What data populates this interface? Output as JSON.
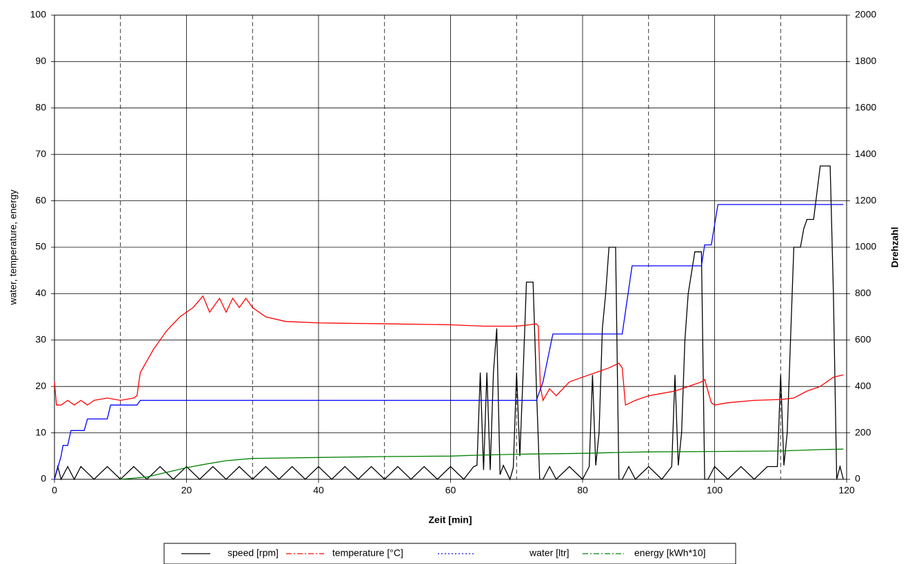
{
  "chart_data": {
    "type": "line",
    "xlabel": "Zeit [min]",
    "ylabel": "water, temperature, energy",
    "y2label": "Drehzahl",
    "xlim": [
      0,
      120
    ],
    "xticks": [
      0,
      20,
      40,
      60,
      80,
      100,
      120
    ],
    "xminorgrid": [
      10,
      30,
      50,
      70,
      90,
      110
    ],
    "ylim": [
      0,
      100
    ],
    "yticks": [
      0,
      10,
      20,
      30,
      40,
      50,
      60,
      70,
      80,
      90,
      100
    ],
    "y2lim": [
      0,
      2000
    ],
    "y2ticks": [
      0,
      200,
      400,
      600,
      800,
      1000,
      1200,
      1400,
      1600,
      1800,
      2000
    ],
    "grid": true,
    "legend": "bottom",
    "series": [
      {
        "name": "speed [rpm]",
        "color": "#000000",
        "style": "solid",
        "axis": "y2",
        "x": [
          0,
          0.5,
          1,
          2,
          3,
          4,
          6,
          8,
          10,
          12,
          14,
          16,
          18,
          20,
          22,
          24,
          26,
          28,
          30,
          32,
          34,
          36,
          38,
          40,
          42,
          44,
          46,
          48,
          50,
          52,
          54,
          56,
          58,
          60,
          62,
          63.5,
          64,
          64.5,
          65,
          65.5,
          66,
          66.5,
          67,
          67.5,
          68,
          69,
          69.5,
          70,
          70.5,
          71,
          71.5,
          72.5,
          73,
          73.5,
          74,
          75,
          76,
          78,
          80,
          81,
          81.5,
          82,
          82.5,
          83,
          83.5,
          84,
          85,
          85.5,
          86,
          87,
          88,
          90,
          92,
          93.5,
          94,
          94.5,
          95,
          95.5,
          96,
          97,
          98,
          98.5,
          99,
          100,
          102,
          104,
          106,
          108,
          109.5,
          110,
          110.5,
          111,
          111.5,
          112,
          113,
          113.5,
          114,
          115,
          116,
          117.5,
          118,
          118.5,
          119,
          119.5
        ],
        "values": [
          0,
          55,
          0,
          55,
          0,
          55,
          0,
          55,
          0,
          55,
          0,
          55,
          0,
          55,
          0,
          55,
          0,
          55,
          0,
          55,
          0,
          55,
          0,
          55,
          0,
          55,
          0,
          55,
          0,
          55,
          0,
          55,
          0,
          55,
          0,
          55,
          60,
          460,
          40,
          460,
          40,
          460,
          650,
          20,
          60,
          0,
          50,
          460,
          100,
          460,
          850,
          850,
          400,
          0,
          0,
          55,
          0,
          55,
          0,
          55,
          450,
          60,
          200,
          650,
          800,
          1000,
          1000,
          0,
          0,
          55,
          0,
          55,
          0,
          55,
          450,
          60,
          200,
          600,
          800,
          980,
          980,
          0,
          0,
          55,
          0,
          55,
          0,
          55,
          55,
          450,
          60,
          200,
          600,
          1000,
          1000,
          1080,
          1120,
          1120,
          1350,
          1350,
          800,
          0,
          55,
          0
        ]
      },
      {
        "name": "temperature [°C]",
        "color": "#ff0000",
        "style": "dashdot",
        "x": [
          0,
          0.3,
          1,
          2,
          3,
          4,
          5,
          6,
          8,
          10,
          12,
          12.5,
          13,
          15,
          17,
          19,
          21,
          22.5,
          23.5,
          25,
          26,
          27,
          28,
          29,
          30,
          32,
          35,
          40,
          50,
          60,
          65,
          70,
          72,
          73,
          73.3,
          73.6,
          74,
          75,
          76,
          78,
          80,
          82,
          84,
          85.5,
          86,
          86.5,
          88,
          90,
          92,
          94,
          96,
          98,
          98.5,
          99,
          99.5,
          100,
          102,
          106,
          110,
          112,
          114,
          116,
          118,
          119.5
        ],
        "values": [
          21,
          16,
          16,
          17,
          16,
          17,
          16,
          17,
          17.5,
          17,
          17.5,
          18,
          23,
          28,
          32,
          35,
          37,
          39.5,
          36,
          39,
          36,
          39,
          37,
          39,
          37,
          35,
          34,
          33.7,
          33.5,
          33.3,
          33,
          33,
          33.3,
          33.5,
          33,
          20,
          17,
          19.5,
          18,
          21,
          22,
          23,
          24,
          25,
          24,
          16,
          17,
          18,
          18.5,
          19,
          20,
          21,
          21.5,
          19,
          16.5,
          16,
          16.5,
          17,
          17.2,
          17.5,
          19,
          20,
          22,
          22.5
        ]
      },
      {
        "name": "water [ltr]",
        "color": "#0000ff",
        "style": "dotted",
        "x": [
          0,
          1,
          1.3,
          2,
          2.5,
          4.5,
          5,
          8,
          8.5,
          12.5,
          13,
          73,
          74,
          75.5,
          86,
          87.5,
          98,
          98.5,
          99.5,
          100.5,
          119.5
        ],
        "values": [
          0,
          5,
          7.3,
          7.3,
          10.5,
          10.5,
          13,
          13,
          16,
          16,
          17,
          17,
          21,
          31.3,
          31.3,
          46,
          46,
          50.5,
          50.5,
          59.2,
          59.2
        ]
      },
      {
        "name": "energy [kWh*10]",
        "color": "#008000",
        "style": "dashdot",
        "x": [
          10,
          14,
          17,
          20,
          23,
          26,
          30,
          40,
          50,
          60,
          64,
          70,
          80,
          86,
          90,
          100,
          110,
          116,
          119.5
        ],
        "values": [
          0,
          0.5,
          1.5,
          2.5,
          3.3,
          4,
          4.5,
          4.7,
          4.9,
          5,
          5.2,
          5.4,
          5.6,
          5.8,
          5.9,
          6,
          6.1,
          6.4,
          6.5
        ]
      }
    ]
  }
}
